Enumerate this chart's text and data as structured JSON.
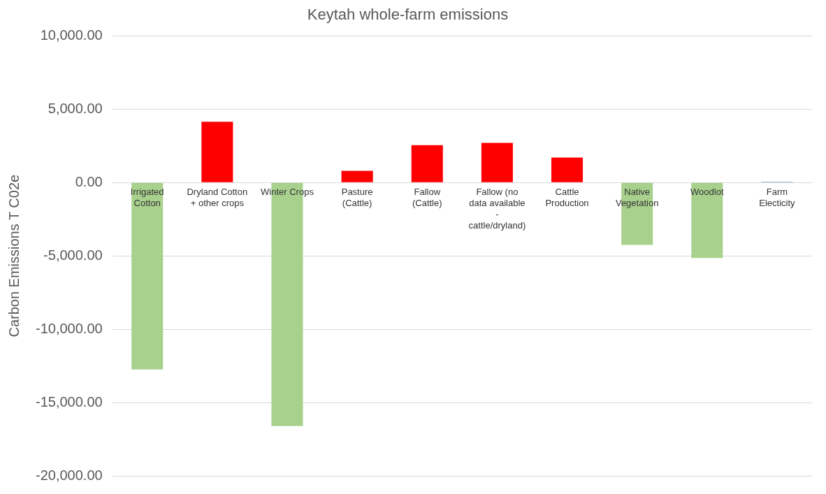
{
  "chart_data": {
    "type": "bar",
    "title": "Keytah whole-farm emissions",
    "ylabel": "Carbon Emissions T C02e",
    "categories": [
      "Irrigated Cotton",
      "Dryland Cotton + other crops",
      "Winter Crops",
      "Pasture (Cattle)",
      "Fallow (Cattle)",
      "Fallow (no data available - cattle/dryland)",
      "Cattle Production",
      "Native Vegetation",
      "Woodlot",
      "Farm Electicity"
    ],
    "values": [
      -12750,
      4150,
      -16600,
      800,
      2550,
      2700,
      1700,
      -4250,
      -5150,
      50
    ],
    "colors": [
      "#a9d18e",
      "#ff0000",
      "#a9d18e",
      "#ff0000",
      "#ff0000",
      "#ff0000",
      "#ff0000",
      "#a9d18e",
      "#a9d18e",
      "#4472c4"
    ],
    "ylim": [
      -20000,
      10000
    ],
    "yticks": [
      {
        "value": -20000,
        "label": "-20,000.00"
      },
      {
        "value": -15000,
        "label": "-15,000.00"
      },
      {
        "value": -10000,
        "label": "-10,000.00"
      },
      {
        "value": -5000,
        "label": "-5,000.00"
      },
      {
        "value": 0,
        "label": "0.00"
      },
      {
        "value": 5000,
        "label": "5,000.00"
      },
      {
        "value": 10000,
        "label": "10,000.00"
      }
    ],
    "grid": "y",
    "legend": false
  }
}
